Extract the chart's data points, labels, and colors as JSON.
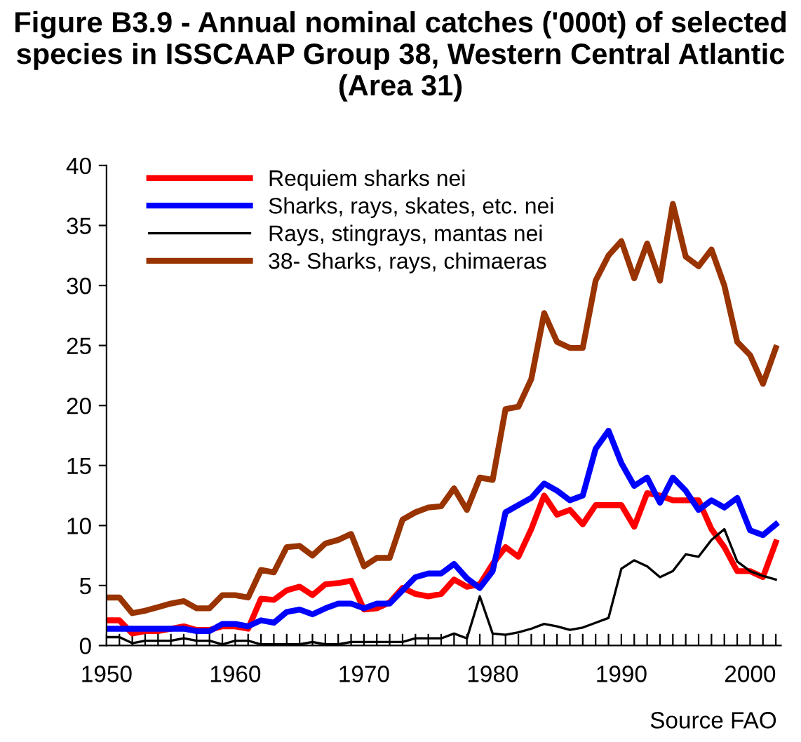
{
  "chart_data": {
    "type": "line",
    "title": "Figure B3.9 - Annual nominal catches ('000t) of selected species in ISSCAAP Group 38, Western Central Atlantic (Area 31)",
    "x": [
      1950,
      1951,
      1952,
      1953,
      1954,
      1955,
      1956,
      1957,
      1958,
      1959,
      1960,
      1961,
      1962,
      1963,
      1964,
      1965,
      1966,
      1967,
      1968,
      1969,
      1970,
      1971,
      1972,
      1973,
      1974,
      1975,
      1976,
      1977,
      1978,
      1979,
      1980,
      1981,
      1982,
      1983,
      1984,
      1985,
      1986,
      1987,
      1988,
      1989,
      1990,
      1991,
      1992,
      1993,
      1994,
      1995,
      1996,
      1997,
      1998,
      1999,
      2000,
      2001,
      2002
    ],
    "series": [
      {
        "name": "Requiem sharks nei",
        "color": "#ff0000",
        "values": [
          2.1,
          2.1,
          1.0,
          1.2,
          1.2,
          1.4,
          1.6,
          1.3,
          1.3,
          1.6,
          1.6,
          1.4,
          3.9,
          3.8,
          4.6,
          4.9,
          4.2,
          5.1,
          5.2,
          5.4,
          3.0,
          3.1,
          3.6,
          4.8,
          4.3,
          4.1,
          4.3,
          5.5,
          4.9,
          5.1,
          6.8,
          8.2,
          7.4,
          9.7,
          12.5,
          10.9,
          11.3,
          10.1,
          11.7,
          11.7,
          11.7,
          9.9,
          12.7,
          12.5,
          12.1,
          12.1,
          12.1,
          9.7,
          8.2,
          6.2,
          6.2,
          5.7,
          8.6
        ]
      },
      {
        "name": "Sharks, rays, skates, etc. nei",
        "color": "#0000ff",
        "values": [
          1.4,
          1.4,
          1.4,
          1.4,
          1.4,
          1.4,
          1.4,
          1.2,
          1.2,
          1.8,
          1.8,
          1.6,
          2.1,
          1.9,
          2.8,
          3.0,
          2.6,
          3.1,
          3.5,
          3.5,
          3.1,
          3.5,
          3.5,
          4.6,
          5.7,
          6.0,
          6.0,
          6.8,
          5.6,
          4.8,
          6.2,
          11.1,
          11.7,
          12.3,
          13.5,
          12.9,
          12.1,
          12.5,
          16.4,
          17.9,
          15.2,
          13.3,
          14.0,
          11.9,
          14.0,
          12.9,
          11.3,
          12.1,
          11.5,
          12.3,
          9.6,
          9.2,
          10.1
        ]
      },
      {
        "name": "Rays, stingrays, mantas nei",
        "color": "#000000",
        "values": [
          0.7,
          0.7,
          0.2,
          0.4,
          0.4,
          0.4,
          0.6,
          0.4,
          0.4,
          0.1,
          0.4,
          0.4,
          0.1,
          0.1,
          0.1,
          0.1,
          0.3,
          0.1,
          0.1,
          0.3,
          0.3,
          0.3,
          0.3,
          0.3,
          0.6,
          0.6,
          0.6,
          1.0,
          0.6,
          4.1,
          1.0,
          0.9,
          1.1,
          1.4,
          1.8,
          1.6,
          1.3,
          1.5,
          1.9,
          2.3,
          6.4,
          7.1,
          6.6,
          5.7,
          6.2,
          7.6,
          7.4,
          8.8,
          9.7,
          7.0,
          6.2,
          5.8,
          5.5
        ]
      },
      {
        "name": "38- Sharks, rays, chimaeras",
        "color": "#993300",
        "values": [
          4.0,
          4.0,
          2.7,
          2.9,
          3.2,
          3.5,
          3.7,
          3.1,
          3.1,
          4.2,
          4.2,
          4.0,
          6.3,
          6.1,
          8.2,
          8.3,
          7.5,
          8.5,
          8.8,
          9.3,
          6.6,
          7.3,
          7.3,
          10.5,
          11.1,
          11.5,
          11.6,
          13.1,
          11.3,
          14.0,
          13.8,
          19.7,
          19.9,
          22.2,
          27.7,
          25.3,
          24.8,
          24.8,
          30.4,
          32.5,
          33.7,
          30.6,
          33.5,
          30.4,
          36.8,
          32.4,
          31.6,
          33.0,
          30.0,
          25.3,
          24.2,
          21.8,
          24.8
        ]
      }
    ],
    "xlim": [
      1950,
      2002.4
    ],
    "xticks": [
      1950,
      {
        "value": 1951,
        "label": null
      },
      {
        "value": 1952,
        "label": null
      },
      {
        "value": 1953,
        "label": null
      },
      {
        "value": 1954,
        "label": null
      },
      {
        "value": 1955,
        "label": null
      },
      {
        "value": 1956,
        "label": null
      },
      {
        "value": 1957,
        "label": null
      },
      {
        "value": 1958,
        "label": null
      },
      {
        "value": 1959,
        "label": null
      },
      1960,
      {
        "value": 1961,
        "label": null
      },
      {
        "value": 1962,
        "label": null
      },
      {
        "value": 1963,
        "label": null
      },
      {
        "value": 1964,
        "label": null
      },
      {
        "value": 1965,
        "label": null
      },
      {
        "value": 1966,
        "label": null
      },
      {
        "value": 1967,
        "label": null
      },
      {
        "value": 1968,
        "label": null
      },
      {
        "value": 1969,
        "label": null
      },
      1970,
      {
        "value": 1971,
        "label": null
      },
      {
        "value": 1972,
        "label": null
      },
      {
        "value": 1973,
        "label": null
      },
      {
        "value": 1974,
        "label": null
      },
      {
        "value": 1975,
        "label": null
      },
      {
        "value": 1976,
        "label": null
      },
      {
        "value": 1977,
        "label": null
      },
      {
        "value": 1978,
        "label": null
      },
      {
        "value": 1979,
        "label": null
      },
      1980,
      {
        "value": 1981,
        "label": null
      },
      {
        "value": 1982,
        "label": null
      },
      {
        "value": 1983,
        "label": null
      },
      {
        "value": 1984,
        "label": null
      },
      {
        "value": 1985,
        "label": null
      },
      {
        "value": 1986,
        "label": null
      },
      {
        "value": 1987,
        "label": null
      },
      {
        "value": 1988,
        "label": null
      },
      {
        "value": 1989,
        "label": null
      },
      1990,
      {
        "value": 1991,
        "label": null
      },
      {
        "value": 1992,
        "label": null
      },
      {
        "value": 1993,
        "label": null
      },
      {
        "value": 1994,
        "label": null
      },
      {
        "value": 1995,
        "label": null
      },
      {
        "value": 1996,
        "label": null
      },
      {
        "value": 1997,
        "label": null
      },
      {
        "value": 1998,
        "label": null
      },
      {
        "value": 1999,
        "label": null
      },
      2000,
      {
        "value": 2001,
        "label": null
      },
      {
        "value": 2002,
        "label": null
      }
    ],
    "ylim": [
      0,
      40
    ],
    "yticks": [
      0,
      5,
      10,
      15,
      20,
      25,
      30,
      35,
      40
    ],
    "grid": false,
    "legend": "top left",
    "marker": "none",
    "line_style": "solid",
    "annotations": [
      "Source FAO"
    ]
  }
}
